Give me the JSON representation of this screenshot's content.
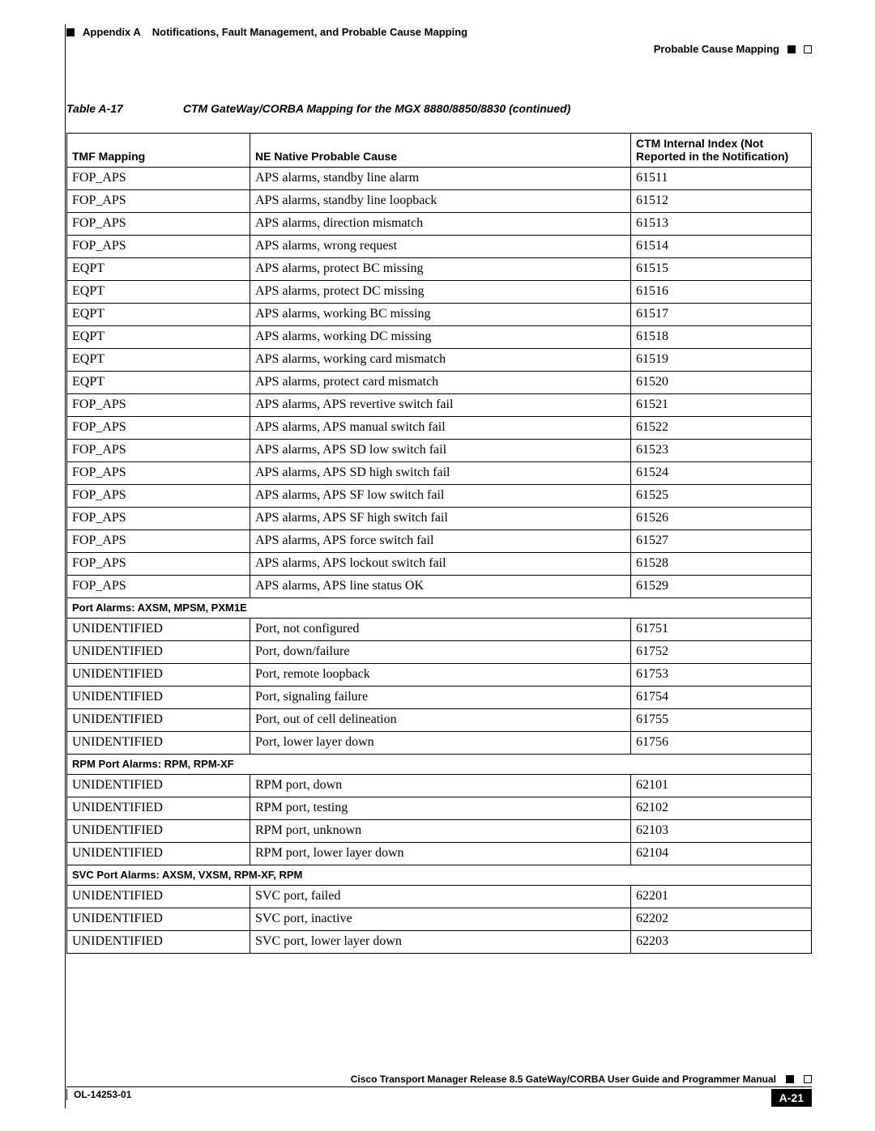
{
  "header": {
    "appendix": "Appendix A",
    "title": "Notifications, Fault Management, and Probable Cause Mapping",
    "section": "Probable Cause Mapping"
  },
  "table": {
    "caption_number": "Table A-17",
    "caption_title": "CTM GateWay/CORBA Mapping for the MGX 8880/8850/8830 (continued)",
    "columns": [
      "TMF Mapping",
      "NE Native Probable Cause",
      "CTM Internal Index (Not Reported in the Notification)"
    ],
    "rows": [
      {
        "c1": "FOP_APS",
        "c2": "APS alarms, standby line alarm",
        "c3": "61511"
      },
      {
        "c1": "FOP_APS",
        "c2": "APS alarms, standby line loopback",
        "c3": "61512"
      },
      {
        "c1": "FOP_APS",
        "c2": "APS alarms, direction mismatch",
        "c3": "61513"
      },
      {
        "c1": "FOP_APS",
        "c2": "APS alarms, wrong request",
        "c3": "61514"
      },
      {
        "c1": "EQPT",
        "c2": "APS alarms, protect BC missing",
        "c3": "61515"
      },
      {
        "c1": "EQPT",
        "c2": "APS alarms, protect DC missing",
        "c3": "61516"
      },
      {
        "c1": "EQPT",
        "c2": "APS alarms, working BC missing",
        "c3": "61517"
      },
      {
        "c1": "EQPT",
        "c2": "APS alarms, working DC missing",
        "c3": "61518"
      },
      {
        "c1": "EQPT",
        "c2": "APS alarms, working card mismatch",
        "c3": "61519"
      },
      {
        "c1": "EQPT",
        "c2": "APS alarms, protect card mismatch",
        "c3": "61520"
      },
      {
        "c1": "FOP_APS",
        "c2": "APS alarms, APS revertive switch fail",
        "c3": "61521"
      },
      {
        "c1": "FOP_APS",
        "c2": "APS alarms, APS manual switch fail",
        "c3": "61522"
      },
      {
        "c1": "FOP_APS",
        "c2": "APS alarms, APS SD low switch fail",
        "c3": "61523"
      },
      {
        "c1": "FOP_APS",
        "c2": "APS alarms, APS SD high switch fail",
        "c3": "61524"
      },
      {
        "c1": "FOP_APS",
        "c2": "APS alarms, APS SF low switch fail",
        "c3": "61525"
      },
      {
        "c1": "FOP_APS",
        "c2": "APS alarms, APS SF high switch fail",
        "c3": "61526"
      },
      {
        "c1": "FOP_APS",
        "c2": "APS alarms, APS force switch fail",
        "c3": "61527"
      },
      {
        "c1": "FOP_APS",
        "c2": "APS alarms, APS lockout switch fail",
        "c3": "61528"
      },
      {
        "c1": "FOP_APS",
        "c2": "APS alarms, APS line status OK",
        "c3": "61529"
      },
      {
        "section": "Port Alarms: AXSM, MPSM, PXM1E"
      },
      {
        "c1": "UNIDENTIFIED",
        "c2": "Port, not configured",
        "c3": "61751"
      },
      {
        "c1": "UNIDENTIFIED",
        "c2": "Port, down/failure",
        "c3": "61752"
      },
      {
        "c1": "UNIDENTIFIED",
        "c2": "Port, remote loopback",
        "c3": "61753"
      },
      {
        "c1": "UNIDENTIFIED",
        "c2": "Port, signaling failure",
        "c3": "61754"
      },
      {
        "c1": "UNIDENTIFIED",
        "c2": "Port, out of cell delineation",
        "c3": "61755"
      },
      {
        "c1": "UNIDENTIFIED",
        "c2": "Port, lower layer down",
        "c3": "61756"
      },
      {
        "section": "RPM Port Alarms: RPM, RPM-XF"
      },
      {
        "c1": "UNIDENTIFIED",
        "c2": "RPM port, down",
        "c3": "62101"
      },
      {
        "c1": "UNIDENTIFIED",
        "c2": "RPM port, testing",
        "c3": "62102"
      },
      {
        "c1": "UNIDENTIFIED",
        "c2": "RPM port, unknown",
        "c3": "62103"
      },
      {
        "c1": "UNIDENTIFIED",
        "c2": "RPM port, lower layer down",
        "c3": "62104"
      },
      {
        "section": "SVC Port Alarms: AXSM, VXSM, RPM-XF, RPM"
      },
      {
        "c1": "UNIDENTIFIED",
        "c2": "SVC port, failed",
        "c3": "62201"
      },
      {
        "c1": "UNIDENTIFIED",
        "c2": "SVC port, inactive",
        "c3": "62202"
      },
      {
        "c1": "UNIDENTIFIED",
        "c2": "SVC port, lower layer down",
        "c3": "62203"
      }
    ]
  },
  "footer": {
    "manual": "Cisco Transport Manager Release 8.5 GateWay/CORBA User Guide and Programmer Manual",
    "doc_id": "OL-14253-01",
    "page": "A-21"
  }
}
